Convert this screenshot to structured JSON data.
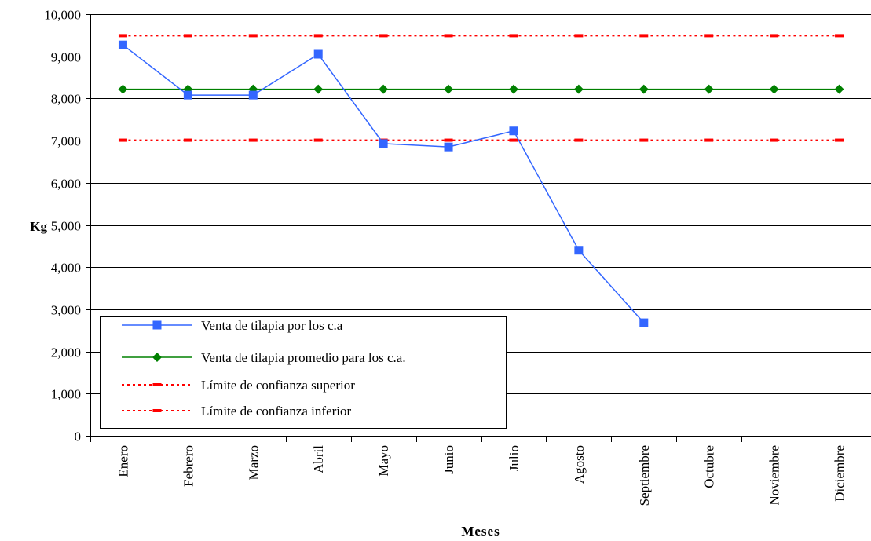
{
  "chart_data": {
    "type": "line",
    "title": "",
    "xlabel": "Meses",
    "ylabel": "Kg",
    "ylim": [
      0,
      10000
    ],
    "yticks": [
      0,
      1000,
      2000,
      3000,
      4000,
      5000,
      6000,
      7000,
      8000,
      9000,
      10000
    ],
    "ytick_labels": [
      "0",
      "1,000",
      "2,000",
      "3,000",
      "4,000",
      "5,000",
      "6,000",
      "7,000",
      "8,000",
      "9,000",
      "10,000"
    ],
    "grid": "horizontal",
    "legend_position": "bottom-left",
    "categories": [
      "Enero",
      "Febrero",
      "Marzo",
      "Abril",
      "Mayo",
      "Junio",
      "Julio",
      "Agosto",
      "Septiembre",
      "Octubre",
      "Noviembre",
      "Diciembre"
    ],
    "series": [
      {
        "name": "Venta de tilapia por los c.a",
        "color": "#3366ff",
        "style": "solid",
        "marker": "square",
        "values": [
          9270,
          8080,
          8080,
          9050,
          6930,
          6850,
          7230,
          4400,
          2680,
          null,
          null,
          null
        ]
      },
      {
        "name": "Venta de tilapia promedio para los c.a.",
        "color": "#008000",
        "style": "solid",
        "marker": "diamond",
        "values": [
          8220,
          8220,
          8220,
          8220,
          8220,
          8220,
          8220,
          8220,
          8220,
          8220,
          8220,
          8220
        ]
      },
      {
        "name": "Límite de confianza superior",
        "color": "#ff0000",
        "style": "dotted",
        "marker": "dash",
        "values": [
          9490,
          9490,
          9490,
          9490,
          9490,
          9490,
          9490,
          9490,
          9490,
          9490,
          9490,
          9490
        ]
      },
      {
        "name": "Límite de confianza inferior",
        "color": "#ff0000",
        "style": "dotted",
        "marker": "dash",
        "values": [
          7010,
          7010,
          7010,
          7010,
          7010,
          7010,
          7010,
          7010,
          7010,
          7010,
          7010,
          7010
        ]
      }
    ]
  }
}
